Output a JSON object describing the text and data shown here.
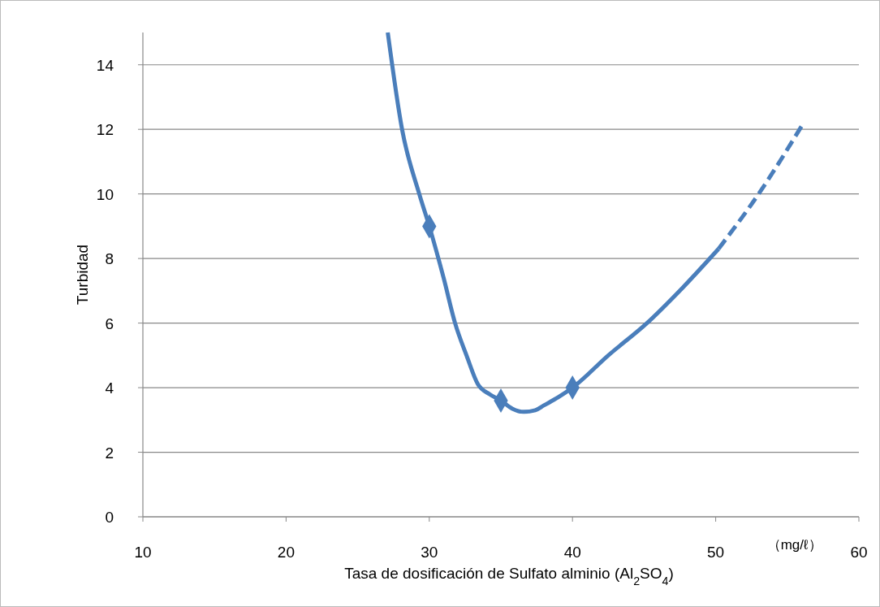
{
  "chart_data": {
    "type": "line",
    "xlabel": "Tasa de dosificación de Sulfato alminio (Al$_{2}$SO$_{4}$)",
    "ylabel": "Turbidad",
    "xlim": [
      10,
      60
    ],
    "xticks": [
      10,
      20,
      30,
      40,
      50,
      60
    ],
    "ylim": [
      0,
      15
    ],
    "yticks": [
      0,
      2,
      4,
      6,
      8,
      10,
      12,
      14
    ],
    "grid": "y",
    "annotations": [
      "（mg/ℓ）"
    ],
    "series": [
      {
        "color": "#4a7ebb",
        "marker": "none",
        "line_style": "solid",
        "x": [
          27.1,
          28.1,
          29.3,
          30,
          31,
          31.8,
          32.6,
          33.4,
          34.2,
          35,
          35.8,
          36.6,
          37.4,
          38,
          39,
          40,
          42.5,
          45.2,
          47.7,
          50.2
        ],
        "values": [
          15,
          12,
          10,
          9,
          7.4,
          6,
          5,
          4.1,
          3.8,
          3.6,
          3.35,
          3.25,
          3.3,
          3.45,
          3.7,
          4,
          5,
          6,
          7.1,
          8.3
        ]
      },
      {
        "color": "#4a7ebb",
        "marker": "none",
        "line_style": "dashed",
        "x": [
          50.2,
          53,
          56
        ],
        "values": [
          8.3,
          10,
          12.1
        ]
      },
      {
        "type": "scatter",
        "color": "#4a7ebb",
        "marker": "diamond",
        "x": [
          30,
          35,
          40
        ],
        "values": [
          9,
          3.6,
          4
        ]
      }
    ]
  }
}
